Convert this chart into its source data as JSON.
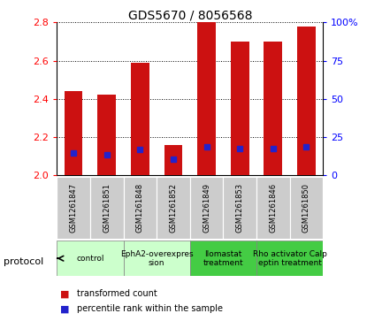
{
  "title": "GDS5670 / 8056568",
  "samples": [
    "GSM1261847",
    "GSM1261851",
    "GSM1261848",
    "GSM1261852",
    "GSM1261849",
    "GSM1261853",
    "GSM1261846",
    "GSM1261850"
  ],
  "transformed_counts": [
    2.44,
    2.42,
    2.59,
    2.155,
    2.8,
    2.7,
    2.7,
    2.78
  ],
  "percentile_ranks": [
    14.5,
    13.5,
    16.5,
    10.5,
    18.5,
    17.5,
    17.5,
    18.5
  ],
  "bar_bottom": 2.0,
  "ylim": [
    2.0,
    2.8
  ],
  "right_ylim": [
    0,
    100
  ],
  "right_yticks": [
    0,
    25,
    50,
    75,
    100
  ],
  "right_yticklabels": [
    "0",
    "25",
    "50",
    "75",
    "100%"
  ],
  "left_yticks": [
    2.0,
    2.2,
    2.4,
    2.6,
    2.8
  ],
  "bar_color": "#cc1111",
  "percentile_color": "#2222cc",
  "bar_width": 0.55,
  "protocols": [
    {
      "label": "control",
      "samples": [
        0,
        1
      ],
      "color": "#ccffcc"
    },
    {
      "label": "EphA2-overexpres\nsion",
      "samples": [
        2,
        3
      ],
      "color": "#ccffcc"
    },
    {
      "label": "llomastat\ntreatment",
      "samples": [
        4,
        5
      ],
      "color": "#44cc44"
    },
    {
      "label": "Rho activator Calp\neptin treatment",
      "samples": [
        6,
        7
      ],
      "color": "#44cc44"
    }
  ],
  "protocol_label": "protocol",
  "legend_items": [
    {
      "label": "transformed count",
      "color": "#cc1111"
    },
    {
      "label": "percentile rank within the sample",
      "color": "#2222cc"
    }
  ],
  "background_color": "#ffffff",
  "sample_bg_color": "#cccccc"
}
